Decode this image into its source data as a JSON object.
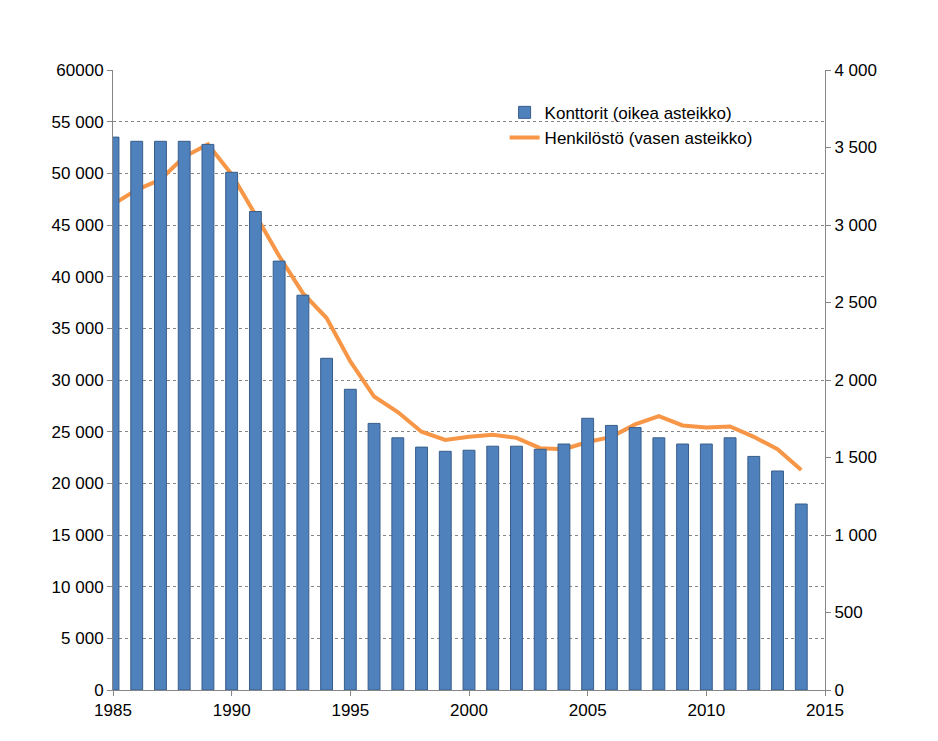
{
  "chart_data": {
    "type": "bar",
    "x": [
      1985,
      1986,
      1987,
      1988,
      1989,
      1990,
      1991,
      1992,
      1993,
      1994,
      1995,
      1996,
      1997,
      1998,
      1999,
      2000,
      2001,
      2002,
      2003,
      2004,
      2005,
      2006,
      2007,
      2008,
      2009,
      2010,
      2011,
      2012,
      2013,
      2014
    ],
    "series": [
      {
        "name": "Konttorit (oikea asteikko)",
        "type": "bar",
        "axis": "y2",
        "color": "#4f81bd",
        "values": [
          3567,
          3540,
          3540,
          3540,
          3520,
          3340,
          3087,
          2767,
          2547,
          2140,
          1940,
          1720,
          1627,
          1567,
          1540,
          1547,
          1573,
          1573,
          1553,
          1587,
          1753,
          1707,
          1693,
          1627,
          1587,
          1587,
          1627,
          1507,
          1413,
          1200
        ]
      },
      {
        "name": "Henkilöstö (vasen asteikko)",
        "type": "line",
        "axis": "y",
        "color": "#f79646",
        "values": [
          47000,
          48400,
          49400,
          51600,
          52800,
          49900,
          46000,
          42000,
          38400,
          36000,
          31800,
          28400,
          26900,
          25000,
          24200,
          24500,
          24700,
          24400,
          23400,
          23300,
          24000,
          24500,
          25700,
          26500,
          25600,
          25400,
          25500,
          24500,
          23300,
          21300
        ]
      }
    ],
    "xlim": [
      1985,
      2015
    ],
    "xticks": [
      1985,
      1990,
      1995,
      2000,
      2005,
      2010,
      2015
    ],
    "ylim": [
      0,
      60000
    ],
    "yticks": [
      0,
      {
        "value": 5000,
        "label": "5 000"
      },
      {
        "value": 10000,
        "label": "10 000"
      },
      {
        "value": 15000,
        "label": "15 000"
      },
      {
        "value": 20000,
        "label": "20 000"
      },
      {
        "value": 25000,
        "label": "25 000"
      },
      {
        "value": 30000,
        "label": "30 000"
      },
      {
        "value": 35000,
        "label": "35 000"
      },
      {
        "value": 40000,
        "label": "40 000"
      },
      {
        "value": 45000,
        "label": "45 000"
      },
      {
        "value": 50000,
        "label": "50 000"
      },
      {
        "value": 55000,
        "label": "55 000"
      },
      60000
    ],
    "y2lim": [
      0,
      4000
    ],
    "y2ticks": [
      0,
      500,
      {
        "value": 1000,
        "label": "1 000"
      },
      {
        "value": 1500,
        "label": "1 500"
      },
      {
        "value": 2000,
        "label": "2 000"
      },
      {
        "value": 2500,
        "label": "2 500"
      },
      {
        "value": 3000,
        "label": "3 000"
      },
      {
        "value": 3500,
        "label": "3 500"
      },
      {
        "value": 4000,
        "label": "4 000"
      }
    ],
    "grid": true,
    "legend": "top right"
  }
}
